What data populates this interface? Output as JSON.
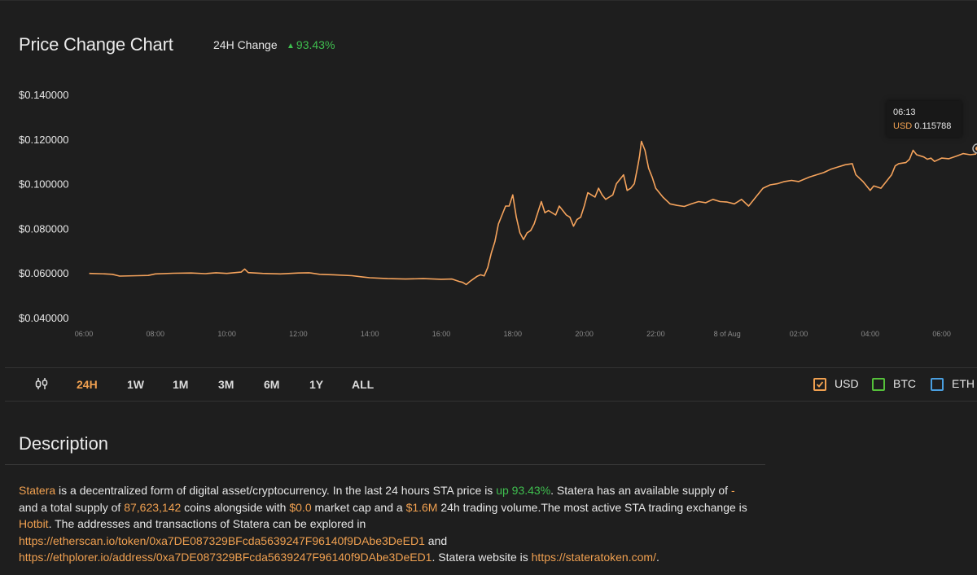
{
  "header": {
    "title": "Price Change Chart",
    "change_label": "24H Change",
    "change_arrow": "▲",
    "change_value": "93.43%"
  },
  "colors": {
    "line": "#f5a35c",
    "accent": "#f0a050",
    "positive": "#3fbf4f",
    "usd": "#f0a050",
    "btc": "#55c03a",
    "eth": "#4a9fe0"
  },
  "tooltip": {
    "time": "06:13",
    "currency": "USD",
    "value": "0.115788"
  },
  "range_tabs": {
    "icon": "candlestick-icon",
    "items": [
      "24H",
      "1W",
      "1M",
      "3M",
      "6M",
      "1Y",
      "ALL"
    ],
    "active": "24H"
  },
  "currencies": [
    {
      "label": "USD",
      "checked": true
    },
    {
      "label": "BTC",
      "checked": false
    },
    {
      "label": "ETH",
      "checked": false
    }
  ],
  "description": {
    "title": "Description",
    "name": "Statera",
    "t1": " is a decentralized form of digital asset/cryptocurrency. In the last 24 hours STA price is ",
    "up": "up 93.43%",
    "t2": ". Statera has an available supply of ",
    "avail": "-",
    "t3": "and a total supply of ",
    "supply": "87,623,142",
    "t4": " coins alongside with ",
    "mcap": "$0.0",
    "t5": " market cap and a ",
    "vol": "$1.6M",
    "t6": " 24h trading volume.The most active STA trading exchange is ",
    "exchange": "Hotbit",
    "t7": ". The addresses and transactions of Statera can be explored in",
    "link1": "https://etherscan.io/token/0xa7DE087329BFcda5639247F96140f9DAbe3DeED1",
    "t8": " and",
    "link2": "https://ethplorer.io/address/0xa7DE087329BFcda5639247F96140f9DAbe3DeED1",
    "t9": ". Statera website is ",
    "link3": "https://stateratoken.com/",
    "t10": "."
  },
  "chart_data": {
    "type": "line",
    "title": "Price Change Chart",
    "y_tick_labels": [
      "$0.140000",
      "$0.120000",
      "$0.100000",
      "$0.080000",
      "$0.060000",
      "$0.040000"
    ],
    "y_ticks": [
      0.14,
      0.12,
      0.1,
      0.08,
      0.06,
      0.04
    ],
    "ylim": [
      0.04,
      0.14
    ],
    "x_tick_labels": [
      "06:00",
      "08:00",
      "10:00",
      "12:00",
      "14:00",
      "16:00",
      "18:00",
      "20:00",
      "22:00",
      "8 of Aug",
      "02:00",
      "04:00",
      "06:00"
    ],
    "x_hours": [
      0,
      2,
      4,
      6,
      8,
      10,
      12,
      14,
      16,
      18,
      20,
      22,
      24
    ],
    "xlim_hours": [
      0,
      24.35
    ],
    "grid": false,
    "series": [
      {
        "name": "USD",
        "points": [
          [
            0.15,
            0.0598
          ],
          [
            0.6,
            0.0596
          ],
          [
            0.8,
            0.0594
          ],
          [
            1.0,
            0.0586
          ],
          [
            1.5,
            0.0588
          ],
          [
            1.8,
            0.0589
          ],
          [
            2.0,
            0.0596
          ],
          [
            2.5,
            0.0599
          ],
          [
            3.0,
            0.06
          ],
          [
            3.4,
            0.0597
          ],
          [
            3.7,
            0.0601
          ],
          [
            4.0,
            0.0598
          ],
          [
            4.4,
            0.0604
          ],
          [
            4.5,
            0.0618
          ],
          [
            4.6,
            0.0602
          ],
          [
            5.0,
            0.0598
          ],
          [
            5.5,
            0.0596
          ],
          [
            6.0,
            0.06
          ],
          [
            6.3,
            0.0601
          ],
          [
            6.6,
            0.0594
          ],
          [
            7.0,
            0.0592
          ],
          [
            7.5,
            0.0588
          ],
          [
            7.8,
            0.0582
          ],
          [
            8.0,
            0.0579
          ],
          [
            8.5,
            0.0575
          ],
          [
            9.0,
            0.0573
          ],
          [
            9.5,
            0.0575
          ],
          [
            10.0,
            0.0572
          ],
          [
            10.3,
            0.0573
          ],
          [
            10.5,
            0.0562
          ],
          [
            10.6,
            0.0558
          ],
          [
            10.7,
            0.0548
          ],
          [
            10.8,
            0.0562
          ],
          [
            11.0,
            0.0585
          ],
          [
            11.1,
            0.0592
          ],
          [
            11.2,
            0.0587
          ],
          [
            11.3,
            0.0625
          ],
          [
            11.4,
            0.069
          ],
          [
            11.5,
            0.074
          ],
          [
            11.6,
            0.082
          ],
          [
            11.7,
            0.086
          ],
          [
            11.8,
            0.09
          ],
          [
            11.9,
            0.09
          ],
          [
            12.0,
            0.095
          ],
          [
            12.1,
            0.085
          ],
          [
            12.2,
            0.078
          ],
          [
            12.3,
            0.075
          ],
          [
            12.4,
            0.078
          ],
          [
            12.5,
            0.079
          ],
          [
            12.6,
            0.082
          ],
          [
            12.7,
            0.087
          ],
          [
            12.8,
            0.092
          ],
          [
            12.9,
            0.087
          ],
          [
            13.0,
            0.088
          ],
          [
            13.2,
            0.086
          ],
          [
            13.3,
            0.09
          ],
          [
            13.4,
            0.088
          ],
          [
            13.5,
            0.086
          ],
          [
            13.6,
            0.085
          ],
          [
            13.7,
            0.081
          ],
          [
            13.8,
            0.084
          ],
          [
            13.9,
            0.085
          ],
          [
            14.0,
            0.09
          ],
          [
            14.1,
            0.096
          ],
          [
            14.2,
            0.095
          ],
          [
            14.3,
            0.094
          ],
          [
            14.4,
            0.098
          ],
          [
            14.5,
            0.095
          ],
          [
            14.6,
            0.093
          ],
          [
            14.7,
            0.094
          ],
          [
            14.8,
            0.095
          ],
          [
            14.9,
            0.1
          ],
          [
            15.0,
            0.102
          ],
          [
            15.1,
            0.104
          ],
          [
            15.2,
            0.097
          ],
          [
            15.3,
            0.098
          ],
          [
            15.4,
            0.1
          ],
          [
            15.5,
            0.108
          ],
          [
            15.55,
            0.1125
          ],
          [
            15.6,
            0.119
          ],
          [
            15.7,
            0.115
          ],
          [
            15.8,
            0.107
          ],
          [
            15.9,
            0.103
          ],
          [
            16.0,
            0.098
          ],
          [
            16.2,
            0.094
          ],
          [
            16.4,
            0.091
          ],
          [
            16.6,
            0.0903
          ],
          [
            16.8,
            0.0898
          ],
          [
            17.0,
            0.091
          ],
          [
            17.2,
            0.092
          ],
          [
            17.4,
            0.0915
          ],
          [
            17.6,
            0.093
          ],
          [
            17.8,
            0.092
          ],
          [
            18.0,
            0.0918
          ],
          [
            18.2,
            0.091
          ],
          [
            18.4,
            0.093
          ],
          [
            18.6,
            0.09
          ],
          [
            18.8,
            0.094
          ],
          [
            19.0,
            0.098
          ],
          [
            19.2,
            0.0995
          ],
          [
            19.4,
            0.1
          ],
          [
            19.6,
            0.101
          ],
          [
            19.8,
            0.1015
          ],
          [
            20.0,
            0.101
          ],
          [
            20.3,
            0.103
          ],
          [
            20.5,
            0.104
          ],
          [
            20.7,
            0.105
          ],
          [
            20.9,
            0.1065
          ],
          [
            21.1,
            0.1075
          ],
          [
            21.3,
            0.1085
          ],
          [
            21.5,
            0.109
          ],
          [
            21.6,
            0.104
          ],
          [
            21.8,
            0.101
          ],
          [
            22.0,
            0.097
          ],
          [
            22.1,
            0.099
          ],
          [
            22.3,
            0.098
          ],
          [
            22.4,
            0.1
          ],
          [
            22.6,
            0.104
          ],
          [
            22.7,
            0.108
          ],
          [
            22.8,
            0.109
          ],
          [
            23.0,
            0.1095
          ],
          [
            23.1,
            0.111
          ],
          [
            23.2,
            0.115
          ],
          [
            23.3,
            0.113
          ],
          [
            23.5,
            0.112
          ],
          [
            23.6,
            0.111
          ],
          [
            23.7,
            0.1115
          ],
          [
            23.8,
            0.11
          ],
          [
            24.0,
            0.1115
          ],
          [
            24.2,
            0.1112
          ],
          [
            24.4,
            0.1123
          ],
          [
            24.6,
            0.1135
          ],
          [
            24.8,
            0.113
          ],
          [
            24.95,
            0.1133
          ],
          [
            25.0,
            0.11578
          ]
        ]
      }
    ]
  }
}
